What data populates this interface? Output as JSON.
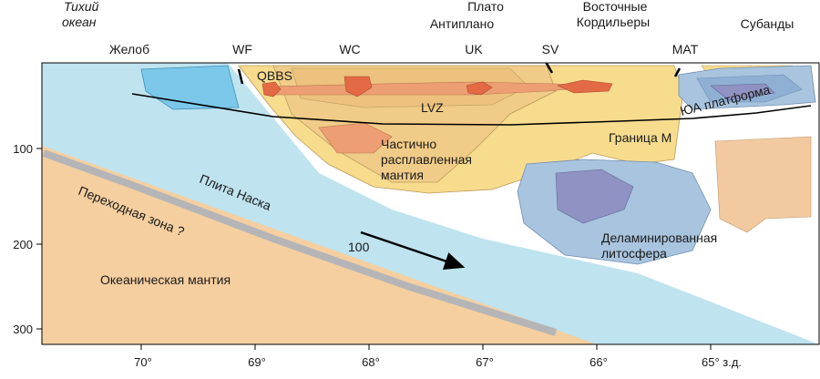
{
  "header": {
    "ocean_line1": "Тихий",
    "ocean_line2": "океан",
    "altiplano_line1": "Плато",
    "altiplano_line2": "Антиплано",
    "ecord_line1": "Восточные",
    "ecord_line2": "Кордильеры",
    "subandes": "Субанды"
  },
  "markers": {
    "trench": "Желоб",
    "wf": "WF",
    "wc": "WC",
    "uk": "UK",
    "sv": "SV",
    "mat": "MAT"
  },
  "labels": {
    "qbbs": "QBBS",
    "lvz": "LVZ",
    "partial_melt_1": "Частично",
    "partial_melt_2": "расплавленная",
    "partial_melt_3": "мантия",
    "moho": "Граница М",
    "platform": "ЮА платформа",
    "nazca": "Плита Наска",
    "transition": "Переходная зона ?",
    "oceanic_mantle": "Океаническая мантия",
    "delam_1": "Деламинированная",
    "delam_2": "литосфера",
    "velocity": "100"
  },
  "axes": {
    "y_ticks": [
      "100",
      "200",
      "300"
    ],
    "x_ticks": [
      "70°",
      "69°",
      "68°",
      "67°",
      "66°",
      "65° з.д."
    ]
  },
  "colors": {
    "slab": "#bfe3ef",
    "mantle": "#f5cfa0",
    "crust": "#f8dc8e",
    "crust_inner": "#f1cc88",
    "melt": "#ee9e73",
    "qbbs": "#e46a45",
    "trench_blue": "#7cc8ea",
    "lithosphere": "#a9c4de",
    "lithosphere_core": "#8f92c2",
    "subandean": "#f3c9a0",
    "transition_gray": "#b5b5b8"
  }
}
